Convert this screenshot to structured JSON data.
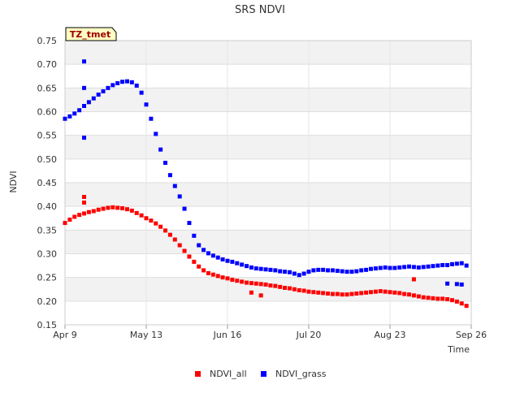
{
  "chart_data": {
    "type": "scatter",
    "title": "SRS NDVI",
    "badge": "TZ_tmet",
    "xlabel": "Time",
    "ylabel": "NDVI",
    "ylim": [
      0.15,
      0.75
    ],
    "xlim": [
      0,
      170
    ],
    "grid": true,
    "legend_position": "bottom-center",
    "y_ticks": [
      0.15,
      0.2,
      0.25,
      0.3,
      0.35,
      0.4,
      0.45,
      0.5,
      0.55,
      0.6,
      0.65,
      0.7,
      0.75
    ],
    "y_tick_labels": [
      "0.15",
      "0.20",
      "0.25",
      "0.30",
      "0.35",
      "0.40",
      "0.45",
      "0.50",
      "0.55",
      "0.60",
      "0.65",
      "0.70",
      "0.75"
    ],
    "x_ticks": [
      0,
      34,
      68,
      102,
      136,
      170
    ],
    "x_tick_labels": [
      "Apr 9",
      "May 13",
      "Jun 16",
      "Jul 20",
      "Aug 23",
      "Sep 26"
    ],
    "series": [
      {
        "name": "NDVI_all",
        "color": "#ff0000",
        "x": [
          0,
          2,
          4,
          6,
          8,
          10,
          12,
          14,
          16,
          18,
          20,
          22,
          24,
          26,
          28,
          30,
          32,
          34,
          36,
          38,
          40,
          42,
          44,
          46,
          48,
          50,
          52,
          54,
          56,
          58,
          60,
          62,
          64,
          66,
          68,
          70,
          72,
          74,
          76,
          78,
          80,
          82,
          84,
          86,
          88,
          90,
          92,
          94,
          96,
          98,
          100,
          102,
          104,
          106,
          108,
          110,
          112,
          114,
          116,
          118,
          120,
          122,
          124,
          126,
          128,
          130,
          132,
          134,
          136,
          138,
          140,
          142,
          144,
          146,
          148,
          150,
          152,
          154,
          156,
          158,
          160,
          162,
          164,
          166,
          168,
          8,
          8,
          78,
          82,
          146
        ],
        "y": [
          0.365,
          0.372,
          0.378,
          0.382,
          0.385,
          0.388,
          0.39,
          0.393,
          0.395,
          0.397,
          0.398,
          0.397,
          0.396,
          0.394,
          0.391,
          0.386,
          0.381,
          0.375,
          0.37,
          0.364,
          0.357,
          0.349,
          0.34,
          0.33,
          0.318,
          0.306,
          0.294,
          0.283,
          0.273,
          0.265,
          0.259,
          0.256,
          0.253,
          0.25,
          0.248,
          0.245,
          0.243,
          0.241,
          0.239,
          0.238,
          0.237,
          0.236,
          0.235,
          0.233,
          0.232,
          0.23,
          0.228,
          0.227,
          0.225,
          0.223,
          0.222,
          0.22,
          0.219,
          0.218,
          0.217,
          0.216,
          0.215,
          0.215,
          0.214,
          0.214,
          0.215,
          0.216,
          0.217,
          0.218,
          0.219,
          0.22,
          0.221,
          0.22,
          0.219,
          0.218,
          0.217,
          0.215,
          0.214,
          0.212,
          0.21,
          0.208,
          0.207,
          0.206,
          0.205,
          0.205,
          0.204,
          0.202,
          0.199,
          0.195,
          0.19,
          0.42,
          0.408,
          0.218,
          0.212,
          0.246
        ]
      },
      {
        "name": "NDVI_grass",
        "color": "#0000ff",
        "x": [
          0,
          2,
          4,
          6,
          8,
          10,
          12,
          14,
          16,
          18,
          20,
          22,
          24,
          26,
          28,
          30,
          32,
          34,
          36,
          38,
          40,
          42,
          44,
          46,
          48,
          50,
          52,
          54,
          56,
          58,
          60,
          62,
          64,
          66,
          68,
          70,
          72,
          74,
          76,
          78,
          80,
          82,
          84,
          86,
          88,
          90,
          92,
          94,
          96,
          98,
          100,
          102,
          104,
          106,
          108,
          110,
          112,
          114,
          116,
          118,
          120,
          122,
          124,
          126,
          128,
          130,
          132,
          134,
          136,
          138,
          140,
          142,
          144,
          146,
          148,
          150,
          152,
          154,
          156,
          158,
          160,
          162,
          164,
          166,
          168,
          8,
          8,
          8,
          160,
          164,
          166
        ],
        "y": [
          0.585,
          0.59,
          0.596,
          0.603,
          0.612,
          0.62,
          0.628,
          0.636,
          0.643,
          0.65,
          0.656,
          0.66,
          0.663,
          0.664,
          0.662,
          0.655,
          0.64,
          0.615,
          0.585,
          0.553,
          0.52,
          0.492,
          0.466,
          0.443,
          0.421,
          0.395,
          0.365,
          0.338,
          0.318,
          0.308,
          0.301,
          0.296,
          0.292,
          0.288,
          0.285,
          0.283,
          0.28,
          0.277,
          0.274,
          0.271,
          0.269,
          0.268,
          0.267,
          0.266,
          0.265,
          0.263,
          0.262,
          0.261,
          0.258,
          0.255,
          0.258,
          0.262,
          0.265,
          0.266,
          0.266,
          0.265,
          0.265,
          0.264,
          0.263,
          0.262,
          0.262,
          0.263,
          0.265,
          0.266,
          0.268,
          0.269,
          0.27,
          0.271,
          0.27,
          0.27,
          0.271,
          0.272,
          0.273,
          0.272,
          0.271,
          0.272,
          0.273,
          0.274,
          0.275,
          0.276,
          0.276,
          0.278,
          0.279,
          0.28,
          0.275,
          0.706,
          0.65,
          0.545,
          0.237,
          0.236,
          0.235
        ]
      }
    ]
  }
}
